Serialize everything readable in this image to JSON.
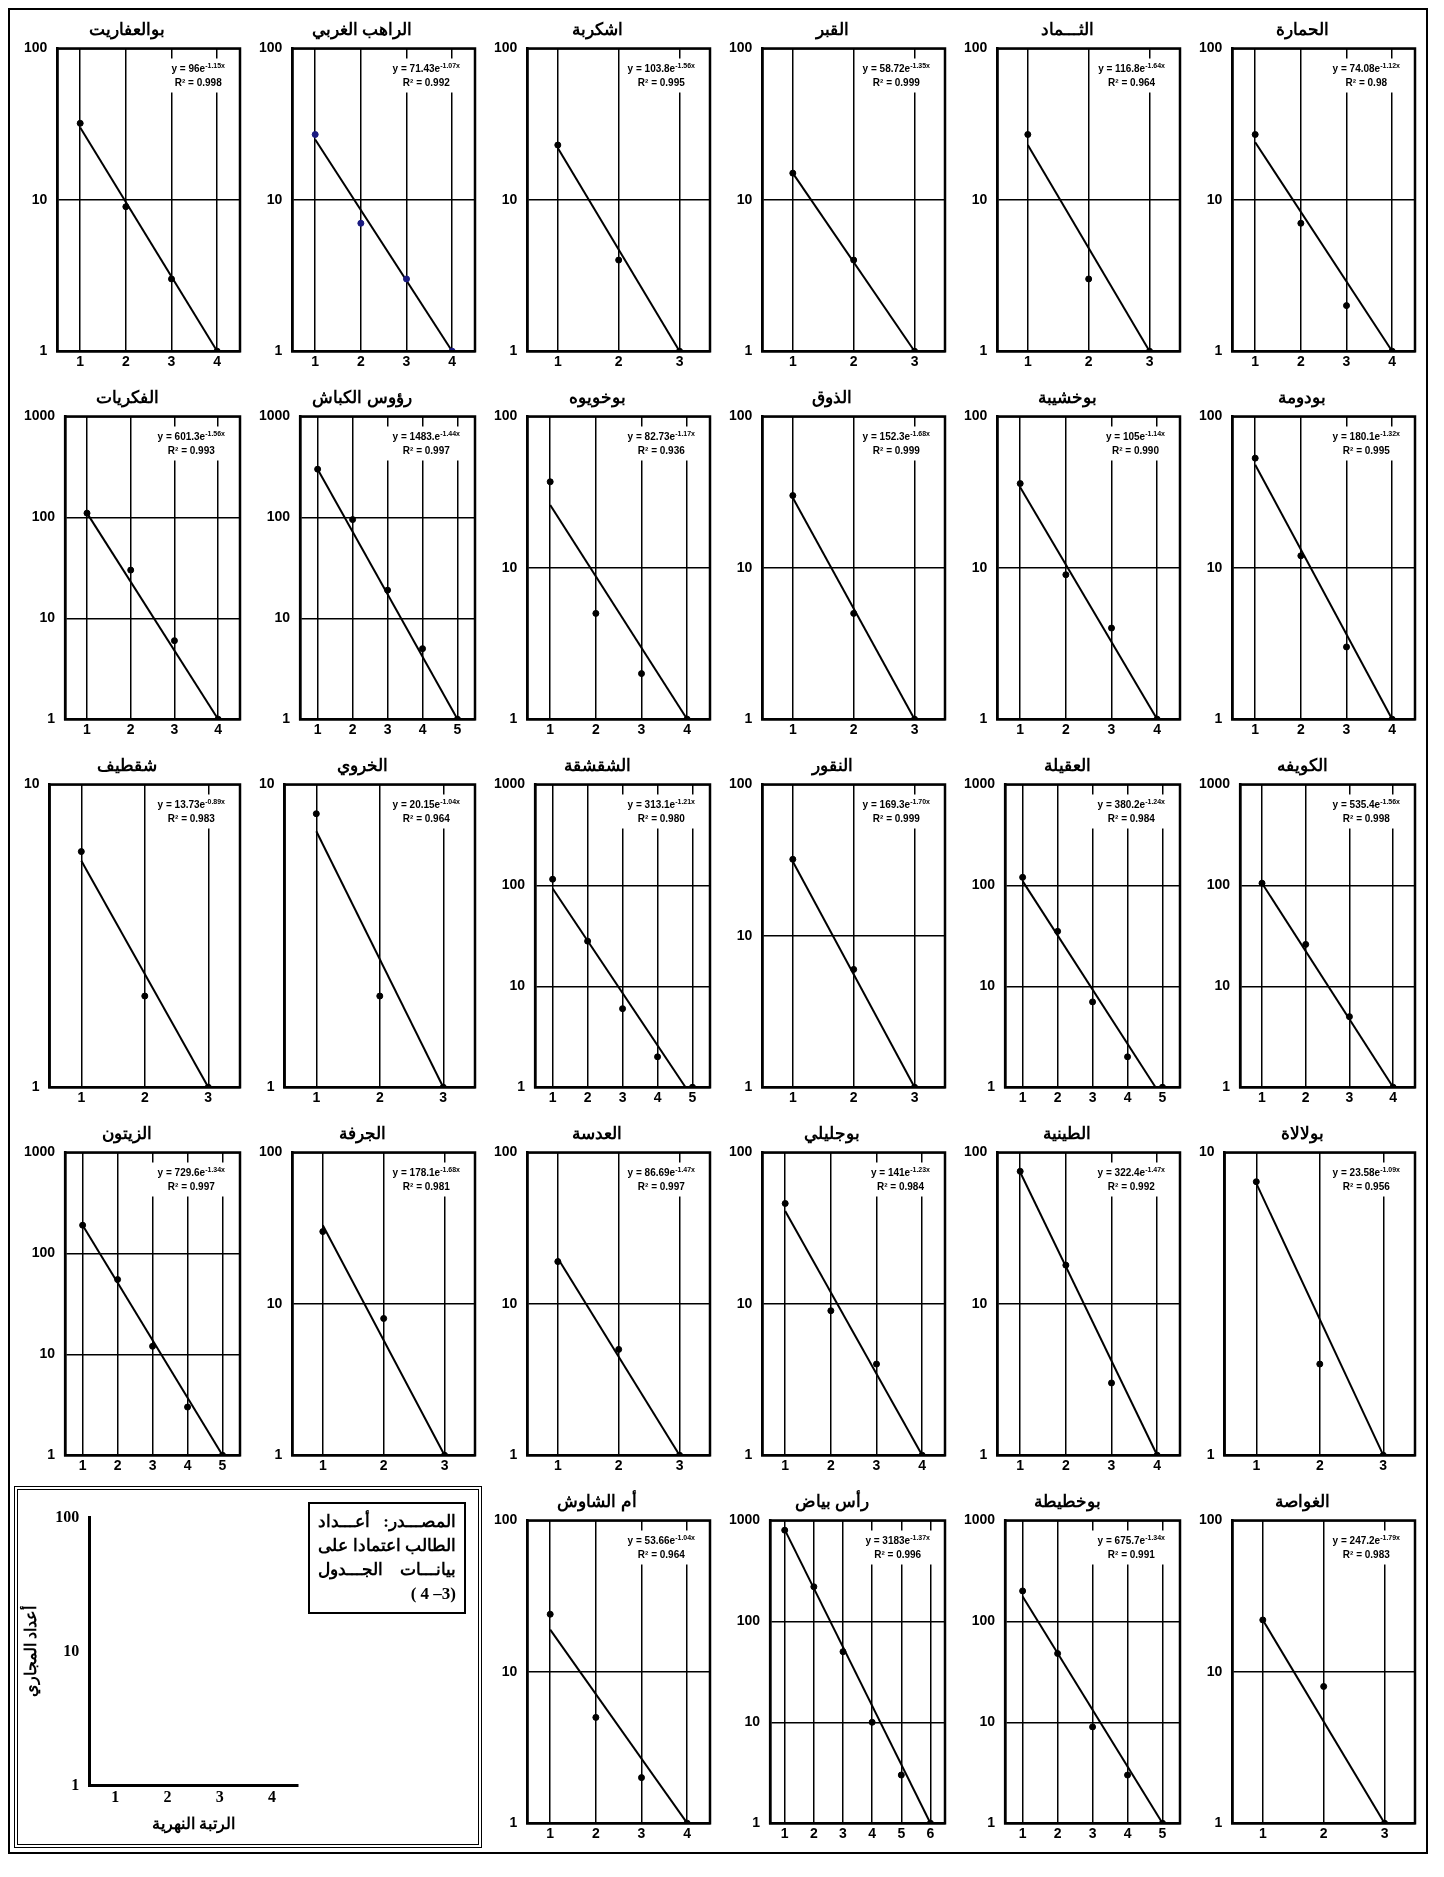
{
  "chart_data": [
    {
      "type": "scatter",
      "title": "بوالعفاريت",
      "xlim": [
        0.5,
        4.5
      ],
      "xticks": [
        1,
        2,
        3,
        4
      ],
      "ylim": [
        1,
        100
      ],
      "yticks": [
        1,
        10,
        100
      ],
      "log": "y",
      "grid": true,
      "x": [
        1,
        2,
        3,
        4
      ],
      "annotations": [
        "y = 96e$^{-1.15x}$",
        "R² = 0.998"
      ],
      "series": [
        {
          "type": "scatter",
          "marker": "circle",
          "color": "#000000",
          "values": [
            32,
            9,
            3,
            1
          ]
        },
        {
          "type": "line",
          "marker": "none",
          "color": "#000000",
          "x": [
            1,
            4
          ],
          "values": [
            30,
            1
          ]
        }
      ]
    },
    {
      "type": "scatter",
      "title": "الراهب الغربي",
      "xlim": [
        0.5,
        4.5
      ],
      "xticks": [
        1,
        2,
        3,
        4
      ],
      "ylim": [
        1,
        100
      ],
      "yticks": [
        1,
        10,
        100
      ],
      "log": "y",
      "grid": true,
      "x": [
        1,
        2,
        3,
        4
      ],
      "annotations": [
        "y = 71.43e$^{-1.07x}$",
        "R² = 0.992"
      ],
      "series": [
        {
          "type": "scatter",
          "marker": "circle",
          "color": "#1a1a80",
          "values": [
            27,
            7,
            3,
            1
          ]
        },
        {
          "type": "line",
          "marker": "none",
          "color": "#000000",
          "x": [
            1,
            4
          ],
          "values": [
            25,
            1
          ]
        }
      ]
    },
    {
      "type": "scatter",
      "title": "اشكربة",
      "xlim": [
        0.5,
        3.5
      ],
      "xticks": [
        1,
        2,
        3
      ],
      "ylim": [
        1,
        100
      ],
      "yticks": [
        1,
        10,
        100
      ],
      "log": "y",
      "grid": true,
      "x": [
        1,
        2,
        3
      ],
      "annotations": [
        "y = 103.8e$^{-1.56x}$",
        "R² = 0.995"
      ],
      "series": [
        {
          "type": "scatter",
          "marker": "circle",
          "color": "#000000",
          "values": [
            23,
            4,
            1
          ]
        },
        {
          "type": "line",
          "marker": "none",
          "color": "#000000",
          "x": [
            1,
            3
          ],
          "values": [
            22,
            1
          ]
        }
      ]
    },
    {
      "type": "scatter",
      "title": "القبر",
      "xlim": [
        0.5,
        3.5
      ],
      "xticks": [
        1,
        2,
        3
      ],
      "ylim": [
        1,
        100
      ],
      "yticks": [
        1,
        10,
        100
      ],
      "log": "y",
      "grid": true,
      "x": [
        1,
        2,
        3
      ],
      "annotations": [
        "y = 58.72e$^{-1.35x}$",
        "R² = 0.999"
      ],
      "series": [
        {
          "type": "scatter",
          "marker": "circle",
          "color": "#000000",
          "values": [
            15,
            4,
            1
          ]
        },
        {
          "type": "line",
          "marker": "none",
          "color": "#000000",
          "x": [
            1,
            3
          ],
          "values": [
            15,
            1
          ]
        }
      ]
    },
    {
      "type": "scatter",
      "title": "الثـــماد",
      "xlim": [
        0.5,
        3.5
      ],
      "xticks": [
        1,
        2,
        3
      ],
      "ylim": [
        1,
        100
      ],
      "yticks": [
        1,
        10,
        100
      ],
      "log": "y",
      "grid": true,
      "x": [
        1,
        2,
        3
      ],
      "annotations": [
        "y = 116.8e$^{-1.64x}$",
        "R² = 0.964"
      ],
      "series": [
        {
          "type": "scatter",
          "marker": "circle",
          "color": "#000000",
          "values": [
            27,
            3,
            1
          ]
        },
        {
          "type": "line",
          "marker": "none",
          "color": "#000000",
          "x": [
            1,
            3
          ],
          "values": [
            23,
            1
          ]
        }
      ]
    },
    {
      "type": "scatter",
      "title": "الحمارة",
      "xlim": [
        0.5,
        4.5
      ],
      "xticks": [
        1,
        2,
        3,
        4
      ],
      "ylim": [
        1,
        100
      ],
      "yticks": [
        1,
        10,
        100
      ],
      "log": "y",
      "grid": true,
      "x": [
        1,
        2,
        3,
        4
      ],
      "annotations": [
        "y = 74.08e$^{-1.12x}$",
        "R² = 0.98"
      ],
      "series": [
        {
          "type": "scatter",
          "marker": "circle",
          "color": "#000000",
          "values": [
            27,
            7,
            2,
            1
          ]
        },
        {
          "type": "line",
          "marker": "none",
          "color": "#000000",
          "x": [
            1,
            4
          ],
          "values": [
            24,
            1
          ]
        }
      ]
    },
    {
      "type": "scatter",
      "title": "الفكريات",
      "xlim": [
        0.5,
        4.5
      ],
      "xticks": [
        1,
        2,
        3,
        4
      ],
      "ylim": [
        1,
        1000
      ],
      "yticks": [
        1,
        10,
        100,
        1000
      ],
      "log": "y",
      "grid": true,
      "x": [
        1,
        2,
        3,
        4
      ],
      "annotations": [
        "y = 601.3e$^{-1.56x}$",
        "R² = 0.993"
      ],
      "series": [
        {
          "type": "scatter",
          "marker": "circle",
          "color": "#000000",
          "values": [
            110,
            30,
            6,
            1
          ]
        },
        {
          "type": "line",
          "marker": "none",
          "color": "#000000",
          "x": [
            1,
            4
          ],
          "values": [
            110,
            1
          ]
        }
      ]
    },
    {
      "type": "scatter",
      "title": "رؤوس الكباش",
      "xlim": [
        0.5,
        5.5
      ],
      "xticks": [
        1,
        2,
        3,
        4,
        5
      ],
      "ylim": [
        1,
        1000
      ],
      "yticks": [
        1,
        10,
        100,
        1000
      ],
      "log": "y",
      "grid": true,
      "x": [
        1,
        2,
        3,
        4,
        5
      ],
      "annotations": [
        "y = 1483.e$^{-1.44x}$",
        "R² = 0.997"
      ],
      "series": [
        {
          "type": "scatter",
          "marker": "circle",
          "color": "#000000",
          "values": [
            300,
            95,
            19,
            5,
            1
          ]
        },
        {
          "type": "line",
          "marker": "none",
          "color": "#000000",
          "x": [
            1,
            5
          ],
          "values": [
            300,
            1
          ]
        }
      ]
    },
    {
      "type": "scatter",
      "title": "بوخويوه",
      "xlim": [
        0.5,
        4.5
      ],
      "xticks": [
        1,
        2,
        3,
        4
      ],
      "ylim": [
        1,
        100
      ],
      "yticks": [
        1,
        10,
        100
      ],
      "log": "y",
      "grid": true,
      "x": [
        1,
        2,
        3,
        4
      ],
      "annotations": [
        "y = 82.73e$^{-1.17x}$",
        "R² = 0.936"
      ],
      "series": [
        {
          "type": "scatter",
          "marker": "circle",
          "color": "#000000",
          "values": [
            37,
            5,
            2,
            1
          ]
        },
        {
          "type": "line",
          "marker": "none",
          "color": "#000000",
          "x": [
            1,
            4
          ],
          "values": [
            26,
            1
          ]
        }
      ]
    },
    {
      "type": "scatter",
      "title": "الذوق",
      "xlim": [
        0.5,
        3.5
      ],
      "xticks": [
        1,
        2,
        3
      ],
      "ylim": [
        1,
        100
      ],
      "yticks": [
        1,
        10,
        100
      ],
      "log": "y",
      "grid": true,
      "x": [
        1,
        2,
        3
      ],
      "annotations": [
        "y = 152.3e$^{-1.68x}$",
        "R² = 0.999"
      ],
      "series": [
        {
          "type": "scatter",
          "marker": "circle",
          "color": "#000000",
          "values": [
            30,
            5,
            1
          ]
        },
        {
          "type": "line",
          "marker": "none",
          "color": "#000000",
          "x": [
            1,
            3
          ],
          "values": [
            29,
            1
          ]
        }
      ]
    },
    {
      "type": "scatter",
      "title": "بوخشيبة",
      "xlim": [
        0.5,
        4.5
      ],
      "xticks": [
        1,
        2,
        3,
        4
      ],
      "ylim": [
        1,
        100
      ],
      "yticks": [
        1,
        10,
        100
      ],
      "log": "y",
      "grid": true,
      "x": [
        1,
        2,
        3,
        4
      ],
      "annotations": [
        "y = 105e$^{-1.14x}$",
        "R² = 0.990"
      ],
      "series": [
        {
          "type": "scatter",
          "marker": "circle",
          "color": "#000000",
          "values": [
            36,
            9,
            4,
            1
          ]
        },
        {
          "type": "line",
          "marker": "none",
          "color": "#000000",
          "x": [
            1,
            4
          ],
          "values": [
            34,
            1
          ]
        }
      ]
    },
    {
      "type": "scatter",
      "title": "بودومة",
      "xlim": [
        0.5,
        4.5
      ],
      "xticks": [
        1,
        2,
        3,
        4
      ],
      "ylim": [
        1,
        100
      ],
      "yticks": [
        1,
        10,
        100
      ],
      "log": "y",
      "grid": true,
      "x": [
        1,
        2,
        3,
        4
      ],
      "annotations": [
        "y = 180.1e$^{-1.32x}$",
        "R² = 0.995"
      ],
      "series": [
        {
          "type": "scatter",
          "marker": "circle",
          "color": "#000000",
          "values": [
            53,
            12,
            3,
            1
          ]
        },
        {
          "type": "line",
          "marker": "none",
          "color": "#000000",
          "x": [
            1,
            4
          ],
          "values": [
            48,
            1
          ]
        }
      ]
    },
    {
      "type": "scatter",
      "title": "شقطيف",
      "xlim": [
        0.5,
        3.5
      ],
      "xticks": [
        1,
        2,
        3
      ],
      "ylim": [
        1,
        10
      ],
      "yticks": [
        1,
        10
      ],
      "log": "y",
      "grid": true,
      "x": [
        1,
        2,
        3
      ],
      "annotations": [
        "y = 13.73e$^{-0.89x}$",
        "R² = 0.983"
      ],
      "series": [
        {
          "type": "scatter",
          "marker": "circle",
          "color": "#000000",
          "values": [
            6,
            2,
            1
          ]
        },
        {
          "type": "line",
          "marker": "none",
          "color": "#000000",
          "x": [
            1,
            3
          ],
          "values": [
            5.6,
            1
          ]
        }
      ]
    },
    {
      "type": "scatter",
      "title": "الخروي",
      "xlim": [
        0.5,
        3.5
      ],
      "xticks": [
        1,
        2,
        3
      ],
      "ylim": [
        1,
        10
      ],
      "yticks": [
        1,
        10
      ],
      "log": "y",
      "grid": true,
      "x": [
        1,
        2,
        3
      ],
      "annotations": [
        "y = 20.15e$^{-1.04x}$",
        "R² = 0.964"
      ],
      "series": [
        {
          "type": "scatter",
          "marker": "circle",
          "color": "#000000",
          "values": [
            8,
            2,
            1
          ]
        },
        {
          "type": "line",
          "marker": "none",
          "color": "#000000",
          "x": [
            1,
            3
          ],
          "values": [
            7,
            1
          ]
        }
      ]
    },
    {
      "type": "scatter",
      "title": "الشقشقة",
      "xlim": [
        0.5,
        5.5
      ],
      "xticks": [
        1,
        2,
        3,
        4,
        5
      ],
      "ylim": [
        1,
        1000
      ],
      "yticks": [
        1,
        10,
        100,
        1000
      ],
      "log": "y",
      "grid": true,
      "x": [
        1,
        2,
        3,
        4,
        5
      ],
      "annotations": [
        "y = 313.1e$^{-1.21x}$",
        "R² = 0.980"
      ],
      "series": [
        {
          "type": "scatter",
          "marker": "circle",
          "color": "#000000",
          "values": [
            115,
            28,
            6,
            2,
            1
          ]
        },
        {
          "type": "line",
          "marker": "none",
          "color": "#000000",
          "x": [
            1,
            4.8
          ],
          "values": [
            93,
            1
          ]
        }
      ]
    },
    {
      "type": "scatter",
      "title": "النقور",
      "xlim": [
        0.5,
        3.5
      ],
      "xticks": [
        1,
        2,
        3
      ],
      "ylim": [
        1,
        100
      ],
      "yticks": [
        1,
        10,
        100
      ],
      "log": "y",
      "grid": true,
      "x": [
        1,
        2,
        3
      ],
      "annotations": [
        "y = 169.3e$^{-1.70x}$",
        "R² = 0.999"
      ],
      "series": [
        {
          "type": "scatter",
          "marker": "circle",
          "color": "#000000",
          "values": [
            32,
            6,
            1
          ]
        },
        {
          "type": "line",
          "marker": "none",
          "color": "#000000",
          "x": [
            1,
            3
          ],
          "values": [
            31,
            1
          ]
        }
      ]
    },
    {
      "type": "scatter",
      "title": "العقيلة",
      "xlim": [
        0.5,
        5.5
      ],
      "xticks": [
        1,
        2,
        3,
        4,
        5
      ],
      "ylim": [
        1,
        1000
      ],
      "yticks": [
        1,
        10,
        100,
        1000
      ],
      "log": "y",
      "grid": true,
      "x": [
        1,
        2,
        3,
        4,
        5
      ],
      "annotations": [
        "y = 380.2e$^{-1.24x}$",
        "R² = 0.984"
      ],
      "series": [
        {
          "type": "scatter",
          "marker": "circle",
          "color": "#000000",
          "values": [
            120,
            35,
            7,
            2,
            1
          ]
        },
        {
          "type": "line",
          "marker": "none",
          "color": "#000000",
          "x": [
            1,
            4.8
          ],
          "values": [
            110,
            1
          ]
        }
      ]
    },
    {
      "type": "scatter",
      "title": "الكويفه",
      "xlim": [
        0.5,
        4.5
      ],
      "xticks": [
        1,
        2,
        3,
        4
      ],
      "ylim": [
        1,
        1000
      ],
      "yticks": [
        1,
        10,
        100,
        1000
      ],
      "log": "y",
      "grid": true,
      "x": [
        1,
        2,
        3,
        4
      ],
      "annotations": [
        "y = 535.4e$^{-1.56x}$",
        "R² = 0.998"
      ],
      "series": [
        {
          "type": "scatter",
          "marker": "circle",
          "color": "#000000",
          "values": [
            105,
            26,
            5,
            1
          ]
        },
        {
          "type": "line",
          "marker": "none",
          "color": "#000000",
          "x": [
            1,
            4
          ],
          "values": [
            105,
            1
          ]
        }
      ]
    },
    {
      "type": "scatter",
      "title": "الزيتون",
      "xlim": [
        0.5,
        5.5
      ],
      "xticks": [
        1,
        2,
        3,
        4,
        5
      ],
      "ylim": [
        1,
        1000
      ],
      "yticks": [
        1,
        10,
        100,
        1000
      ],
      "log": "y",
      "grid": true,
      "x": [
        1,
        2,
        3,
        4,
        5
      ],
      "annotations": [
        "y = 729.6e$^{-1.34x}$",
        "R² = 0.997"
      ],
      "series": [
        {
          "type": "scatter",
          "marker": "circle",
          "color": "#000000",
          "values": [
            190,
            55,
            12,
            3,
            1
          ]
        },
        {
          "type": "line",
          "marker": "none",
          "color": "#000000",
          "x": [
            1,
            5
          ],
          "values": [
            190,
            1
          ]
        }
      ]
    },
    {
      "type": "scatter",
      "title": "الجرفة",
      "xlim": [
        0.5,
        3.5
      ],
      "xticks": [
        1,
        2,
        3
      ],
      "ylim": [
        1,
        100
      ],
      "yticks": [
        1,
        10,
        100
      ],
      "log": "y",
      "grid": true,
      "x": [
        1,
        2,
        3
      ],
      "annotations": [
        "y = 178.1e$^{-1.68x}$",
        "R² = 0.981"
      ],
      "series": [
        {
          "type": "scatter",
          "marker": "circle",
          "color": "#000000",
          "values": [
            30,
            8,
            1
          ]
        },
        {
          "type": "line",
          "marker": "none",
          "color": "#000000",
          "x": [
            1,
            3
          ],
          "values": [
            33,
            1
          ]
        }
      ]
    },
    {
      "type": "scatter",
      "title": "العدسة",
      "xlim": [
        0.5,
        3.5
      ],
      "xticks": [
        1,
        2,
        3
      ],
      "ylim": [
        1,
        100
      ],
      "yticks": [
        1,
        10,
        100
      ],
      "log": "y",
      "grid": true,
      "x": [
        1,
        2,
        3
      ],
      "annotations": [
        "y = 86.69e$^{-1.47x}$",
        "R² = 0.997"
      ],
      "series": [
        {
          "type": "scatter",
          "marker": "circle",
          "color": "#000000",
          "values": [
            19,
            5,
            1
          ]
        },
        {
          "type": "line",
          "marker": "none",
          "color": "#000000",
          "x": [
            1,
            3
          ],
          "values": [
            20,
            1
          ]
        }
      ]
    },
    {
      "type": "scatter",
      "title": "بوجليلي",
      "xlim": [
        0.5,
        4.5
      ],
      "xticks": [
        1,
        2,
        3,
        4
      ],
      "ylim": [
        1,
        100
      ],
      "yticks": [
        1,
        10,
        100
      ],
      "log": "y",
      "grid": true,
      "x": [
        1,
        2,
        3,
        4
      ],
      "annotations": [
        "y = 141e$^{-1.23x}$",
        "R² = 0.984"
      ],
      "series": [
        {
          "type": "scatter",
          "marker": "circle",
          "color": "#000000",
          "values": [
            46,
            9,
            4,
            1
          ]
        },
        {
          "type": "line",
          "marker": "none",
          "color": "#000000",
          "x": [
            1,
            4
          ],
          "values": [
            41,
            1
          ]
        }
      ]
    },
    {
      "type": "scatter",
      "title": "الطينية",
      "xlim": [
        0.5,
        4.5
      ],
      "xticks": [
        1,
        2,
        3,
        4
      ],
      "ylim": [
        1,
        100
      ],
      "yticks": [
        1,
        10,
        100
      ],
      "log": "y",
      "grid": true,
      "x": [
        1,
        2,
        3,
        4
      ],
      "annotations": [
        "y = 322.4e$^{-1.47x}$",
        "R² = 0.992"
      ],
      "series": [
        {
          "type": "scatter",
          "marker": "circle",
          "color": "#000000",
          "values": [
            75,
            18,
            3,
            1
          ]
        },
        {
          "type": "line",
          "marker": "none",
          "color": "#000000",
          "x": [
            1,
            4
          ],
          "values": [
            74,
            1
          ]
        }
      ]
    },
    {
      "type": "scatter",
      "title": "بولالاة",
      "xlim": [
        0.5,
        3.5
      ],
      "xticks": [
        1,
        2,
        3
      ],
      "ylim": [
        1,
        10
      ],
      "yticks": [
        1,
        10
      ],
      "log": "y",
      "grid": true,
      "x": [
        1,
        2,
        3
      ],
      "annotations": [
        "y = 23.58e$^{-1.09x}$",
        "R² = 0.956"
      ],
      "series": [
        {
          "type": "scatter",
          "marker": "circle",
          "color": "#000000",
          "values": [
            8,
            2,
            1
          ]
        },
        {
          "type": "line",
          "marker": "none",
          "color": "#000000",
          "x": [
            1,
            3
          ],
          "values": [
            7.9,
            1
          ]
        }
      ]
    },
    {
      "type": "line",
      "xlabel": "الرتبة النهرية",
      "ylabel": "أعداد المجاري",
      "xlim": [
        0.5,
        4.5
      ],
      "xticks": [
        1,
        2,
        3,
        4
      ],
      "ylim": [
        1,
        100
      ],
      "yticks": [
        1,
        10,
        100
      ],
      "log": "y",
      "annotations": [
        "المصـــدر: أعـــداد الطالب اعتمادا على بيانـــات الجـــدول (3– 4 )"
      ]
    },
    {
      "type": "scatter",
      "title": "أم الشاوش",
      "xlim": [
        0.5,
        4.5
      ],
      "xticks": [
        1,
        2,
        3,
        4
      ],
      "ylim": [
        1,
        100
      ],
      "yticks": [
        1,
        10,
        100
      ],
      "log": "y",
      "grid": true,
      "x": [
        1,
        2,
        3,
        4
      ],
      "annotations": [
        "y = 53.66e$^{-1.04x}$",
        "R² = 0.964"
      ],
      "series": [
        {
          "type": "scatter",
          "marker": "circle",
          "color": "#000000",
          "values": [
            24,
            5,
            2,
            1
          ]
        },
        {
          "type": "line",
          "marker": "none",
          "color": "#000000",
          "x": [
            1,
            4
          ],
          "values": [
            19,
            1
          ]
        }
      ]
    },
    {
      "type": "scatter",
      "title": "رأس بياض",
      "xlim": [
        0.5,
        6.5
      ],
      "xticks": [
        1,
        2,
        3,
        4,
        5,
        6
      ],
      "ylim": [
        1,
        1000
      ],
      "yticks": [
        1,
        10,
        100,
        1000
      ],
      "log": "y",
      "grid": true,
      "x": [
        1,
        2,
        3,
        4,
        5,
        6
      ],
      "annotations": [
        "y = 3183e$^{-1.37x}$",
        "R² = 0.996"
      ],
      "series": [
        {
          "type": "scatter",
          "marker": "circle",
          "color": "#000000",
          "values": [
            800,
            220,
            50,
            10,
            3,
            1
          ]
        },
        {
          "type": "line",
          "marker": "none",
          "color": "#000000",
          "x": [
            1,
            6
          ],
          "values": [
            810,
            1
          ]
        }
      ]
    },
    {
      "type": "scatter",
      "title": "بوخطيطة",
      "xlim": [
        0.5,
        5.5
      ],
      "xticks": [
        1,
        2,
        3,
        4,
        5
      ],
      "ylim": [
        1,
        1000
      ],
      "yticks": [
        1,
        10,
        100,
        1000
      ],
      "log": "y",
      "grid": true,
      "x": [
        1,
        2,
        3,
        4,
        5
      ],
      "annotations": [
        "y = 675.7e$^{-1.34x}$",
        "R² = 0.991"
      ],
      "series": [
        {
          "type": "scatter",
          "marker": "circle",
          "color": "#000000",
          "values": [
            200,
            48,
            9,
            3,
            1
          ]
        },
        {
          "type": "line",
          "marker": "none",
          "color": "#000000",
          "x": [
            1,
            5
          ],
          "values": [
            176,
            1
          ]
        }
      ]
    },
    {
      "type": "scatter",
      "title": "الغواصة",
      "xlim": [
        0.5,
        3.5
      ],
      "xticks": [
        1,
        2,
        3
      ],
      "ylim": [
        1,
        100
      ],
      "yticks": [
        1,
        10,
        100
      ],
      "log": "y",
      "grid": true,
      "x": [
        1,
        2,
        3
      ],
      "annotations": [
        "y = 247.2e$^{-1.79x}$",
        "R² = 0.983"
      ],
      "series": [
        {
          "type": "scatter",
          "marker": "circle",
          "color": "#000000",
          "values": [
            22,
            8,
            1
          ]
        },
        {
          "type": "line",
          "marker": "none",
          "color": "#000000",
          "x": [
            1,
            3
          ],
          "values": [
            22,
            1
          ]
        }
      ]
    }
  ]
}
